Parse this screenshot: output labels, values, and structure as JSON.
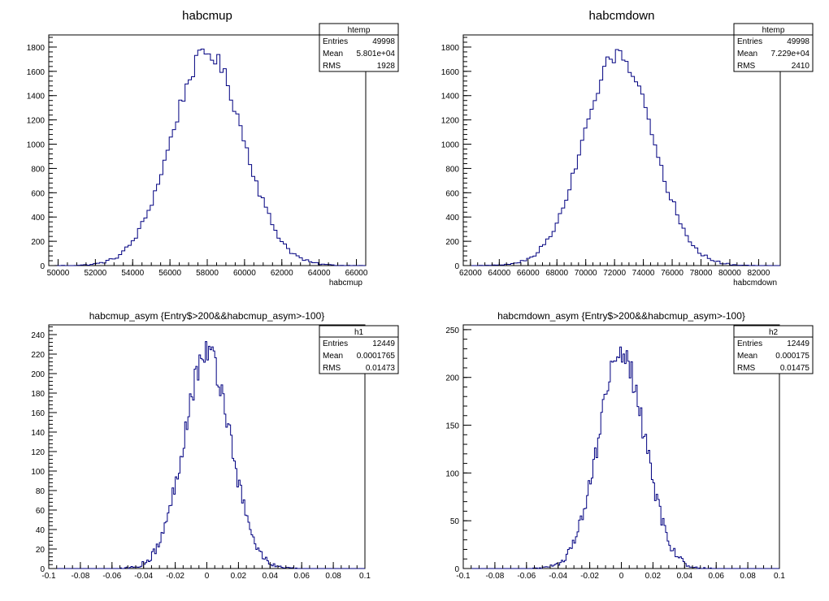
{
  "chart_data": [
    {
      "type": "histogram",
      "title": "habcmup",
      "xlabel": "habcmup",
      "ylabel": "",
      "xlim": [
        49500,
        66500
      ],
      "ylim": [
        0,
        1900
      ],
      "xticks": [
        50000,
        52000,
        54000,
        56000,
        58000,
        60000,
        62000,
        64000,
        66000
      ],
      "xtick_labels": [
        "50000",
        "52000",
        "54000",
        "56000",
        "58000",
        "60000",
        "62000",
        "64000",
        "66000"
      ],
      "yticks": [
        0,
        200,
        400,
        600,
        800,
        1000,
        1200,
        1400,
        1600,
        1800
      ],
      "ytick_labels": [
        "0",
        "200",
        "400",
        "600",
        "800",
        "1000",
        "1200",
        "1400",
        "1600",
        "1800"
      ],
      "line_color": "#000080",
      "bins": {
        "min": 49500,
        "max": 66500,
        "count": 100
      },
      "profile": {
        "mean": 58010,
        "sigma": 1928,
        "peak": 1750,
        "jitter": 70
      },
      "stats": {
        "name": "htemp",
        "rows": [
          {
            "label": "Entries",
            "value": "49998"
          },
          {
            "label": "Mean",
            "value": "5.801e+04"
          },
          {
            "label": "RMS",
            "value": "1928"
          }
        ]
      }
    },
    {
      "type": "histogram",
      "title": "habcmdown",
      "xlabel": "habcmdown",
      "ylabel": "",
      "xlim": [
        61500,
        83500
      ],
      "ylim": [
        0,
        1900
      ],
      "xticks": [
        62000,
        64000,
        66000,
        68000,
        70000,
        72000,
        74000,
        76000,
        78000,
        80000,
        82000
      ],
      "xtick_labels": [
        "62000",
        "64000",
        "66000",
        "68000",
        "70000",
        "72000",
        "74000",
        "76000",
        "78000",
        "80000",
        "82000"
      ],
      "yticks": [
        0,
        200,
        400,
        600,
        800,
        1000,
        1200,
        1400,
        1600,
        1800
      ],
      "ytick_labels": [
        "0",
        "200",
        "400",
        "600",
        "800",
        "1000",
        "1200",
        "1400",
        "1600",
        "1800"
      ],
      "line_color": "#000080",
      "bins": {
        "min": 61500,
        "max": 83500,
        "count": 100
      },
      "profile": {
        "mean": 72290,
        "sigma": 2410,
        "peak": 1740,
        "jitter": 70
      },
      "stats": {
        "name": "htemp",
        "rows": [
          {
            "label": "Entries",
            "value": "49998"
          },
          {
            "label": "Mean",
            "value": "7.229e+04"
          },
          {
            "label": "RMS",
            "value": "2410"
          }
        ]
      }
    },
    {
      "type": "histogram",
      "title": "habcmup_asym {Entry$>200&&habcmup_asym>-100}",
      "xlabel": "",
      "ylabel": "",
      "xlim": [
        -0.1,
        0.1
      ],
      "ylim": [
        0,
        250
      ],
      "xticks": [
        -0.1,
        -0.08,
        -0.06,
        -0.04,
        -0.02,
        0,
        0.02,
        0.04,
        0.06,
        0.08,
        0.1
      ],
      "xtick_labels": [
        "-0.1",
        "-0.08",
        "-0.06",
        "-0.04",
        "-0.02",
        "0",
        "0.02",
        "0.04",
        "0.06",
        "0.08",
        "0.1"
      ],
      "yticks": [
        0,
        20,
        40,
        60,
        80,
        100,
        120,
        140,
        160,
        180,
        200,
        220,
        240
      ],
      "ytick_labels": [
        "0",
        "20",
        "40",
        "60",
        "80",
        "100",
        "120",
        "140",
        "160",
        "180",
        "200",
        "220",
        "240"
      ],
      "line_color": "#000080",
      "bins": {
        "min": -0.1,
        "max": 0.1,
        "count": 200
      },
      "profile": {
        "mean": 0.0001765,
        "sigma": 0.01473,
        "peak": 222,
        "jitter": 16
      },
      "stats": {
        "name": "h1",
        "rows": [
          {
            "label": "Entries",
            "value": "12449"
          },
          {
            "label": "Mean",
            "value": "0.0001765"
          },
          {
            "label": "RMS",
            "value": "0.01473"
          }
        ]
      }
    },
    {
      "type": "histogram",
      "title": "habcmdown_asym {Entry$>200&&habcmup_asym>-100}",
      "xlabel": "",
      "ylabel": "",
      "xlim": [
        -0.1,
        0.1
      ],
      "ylim": [
        0,
        255
      ],
      "xticks": [
        -0.1,
        -0.08,
        -0.06,
        -0.04,
        -0.02,
        0,
        0.02,
        0.04,
        0.06,
        0.08,
        0.1
      ],
      "xtick_labels": [
        "-0.1",
        "-0.08",
        "-0.06",
        "-0.04",
        "-0.02",
        "0",
        "0.02",
        "0.04",
        "0.06",
        "0.08",
        "0.1"
      ],
      "yticks": [
        0,
        50,
        100,
        150,
        200,
        250
      ],
      "ytick_labels": [
        "0",
        "50",
        "100",
        "150",
        "200",
        "250"
      ],
      "line_color": "#000080",
      "bins": {
        "min": -0.1,
        "max": 0.1,
        "count": 200
      },
      "profile": {
        "mean": 0.000175,
        "sigma": 0.01475,
        "peak": 224,
        "jitter": 16
      },
      "stats": {
        "name": "h2",
        "rows": [
          {
            "label": "Entries",
            "value": "12449"
          },
          {
            "label": "Mean",
            "value": "0.000175"
          },
          {
            "label": "RMS",
            "value": "0.01475"
          }
        ]
      }
    }
  ]
}
